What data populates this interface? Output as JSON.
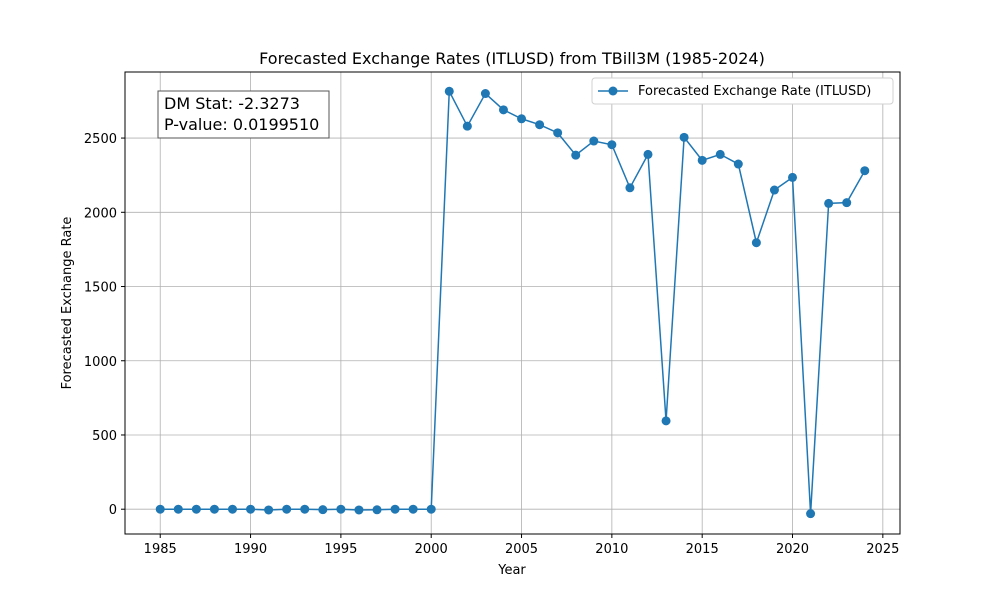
{
  "chart_data": {
    "type": "line",
    "title": "Forecasted Exchange Rates (ITLUSD) from TBill3M (1985-2024)",
    "xlabel": "Year",
    "ylabel": "Forecasted Exchange Rate",
    "xlim": [
      1983.05,
      2025.95
    ],
    "ylim": [
      -167,
      2945
    ],
    "x_ticks": [
      1985,
      1990,
      1995,
      2000,
      2005,
      2010,
      2015,
      2020,
      2025
    ],
    "y_ticks": [
      0,
      500,
      1000,
      1500,
      2000,
      2500
    ],
    "grid": true,
    "legend_position": "top-right",
    "color": "#1f77b4",
    "series": [
      {
        "name": "Forecasted Exchange Rate (ITLUSD)",
        "x": [
          1985,
          1986,
          1987,
          1988,
          1989,
          1990,
          1991,
          1992,
          1993,
          1994,
          1995,
          1996,
          1997,
          1998,
          1999,
          2000,
          2001,
          2002,
          2003,
          2004,
          2005,
          2006,
          2007,
          2008,
          2009,
          2010,
          2011,
          2012,
          2013,
          2014,
          2015,
          2016,
          2017,
          2018,
          2019,
          2020,
          2021,
          2022,
          2023,
          2024
        ],
        "y": [
          0,
          0,
          0,
          0,
          0,
          0,
          -5,
          0,
          0,
          -3,
          0,
          -5,
          -4,
          0,
          0,
          0,
          2815,
          2580,
          2800,
          2690,
          2630,
          2590,
          2535,
          2385,
          2480,
          2455,
          2165,
          2390,
          595,
          2505,
          2350,
          2390,
          2325,
          1795,
          2150,
          2235,
          -30,
          2060,
          2065,
          2280
        ]
      }
    ],
    "annotation": {
      "dm_stat": "DM Stat: -2.3273",
      "p_value": "P-value: 0.0199510"
    }
  }
}
